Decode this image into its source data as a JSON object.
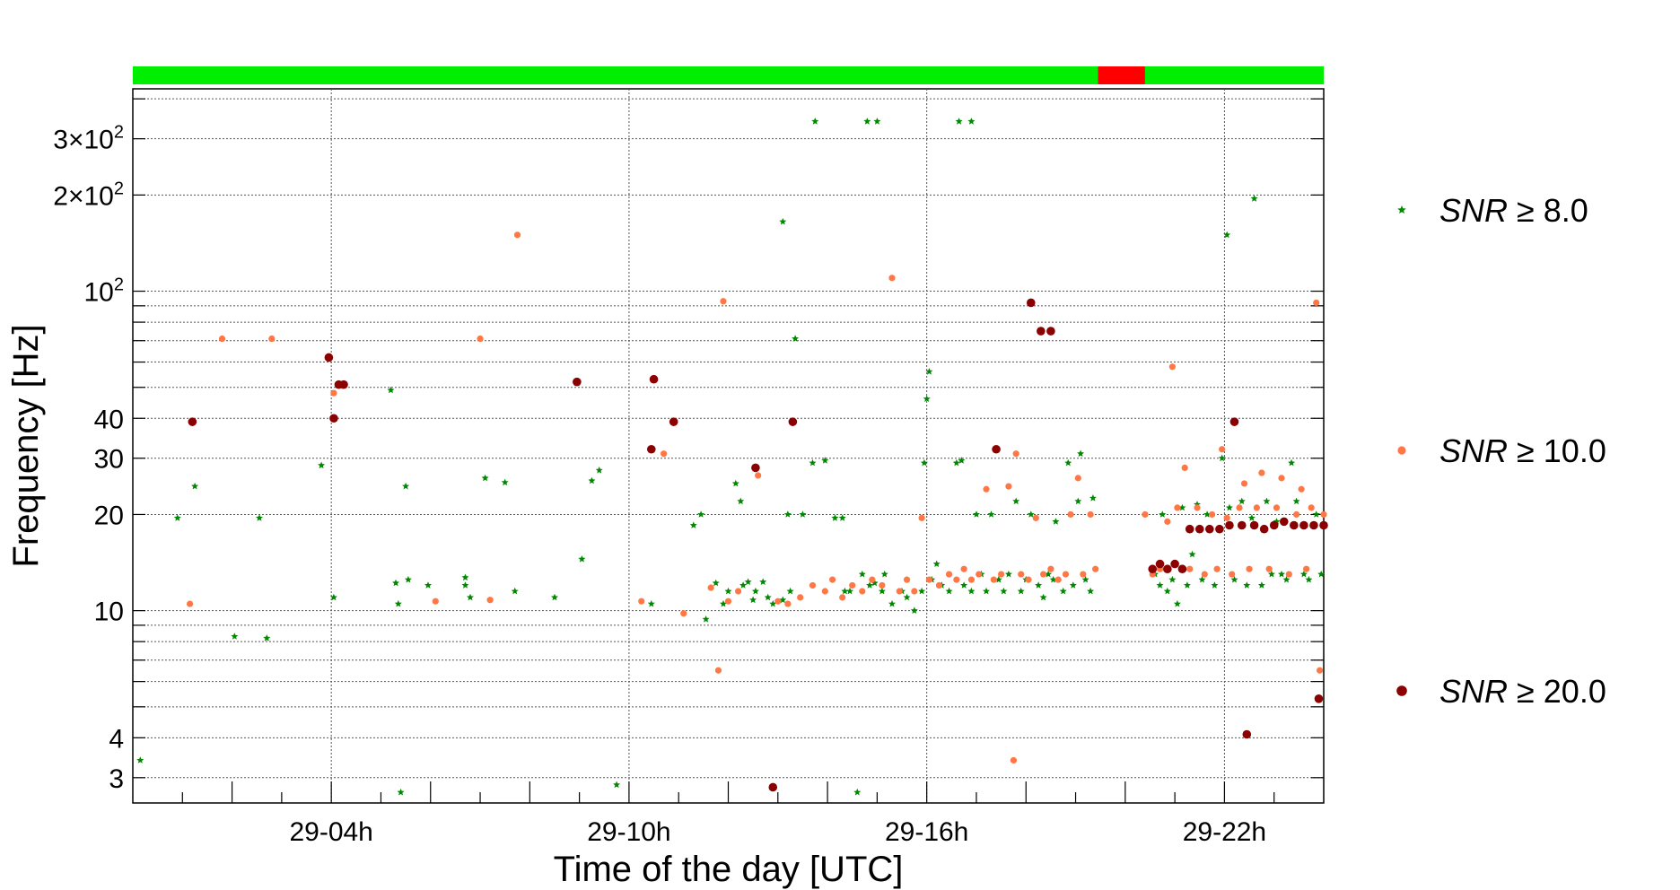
{
  "chart_data": {
    "type": "scatter",
    "title": "",
    "xlabel": "Time of the day [UTC]",
    "ylabel": "Frequency [Hz]",
    "x_unit": "hours (UTC, day 29)",
    "xlim": [
      0,
      24
    ],
    "ylim": [
      2.5,
      430
    ],
    "yscale": "log",
    "grid": true,
    "x_ticks": [
      {
        "value": 4,
        "label": "29-04h"
      },
      {
        "value": 10,
        "label": "29-10h"
      },
      {
        "value": 16,
        "label": "29-16h"
      },
      {
        "value": 22,
        "label": "29-22h"
      }
    ],
    "y_ticks": [
      {
        "value": 3,
        "label": "3",
        "sup": ""
      },
      {
        "value": 4,
        "label": "4",
        "sup": ""
      },
      {
        "value": 10,
        "label": "10",
        "sup": ""
      },
      {
        "value": 20,
        "label": "20",
        "sup": ""
      },
      {
        "value": 30,
        "label": "30",
        "sup": ""
      },
      {
        "value": 40,
        "label": "40",
        "sup": ""
      },
      {
        "value": 100,
        "label": "10",
        "sup": "2"
      },
      {
        "value": 200,
        "label": "2×10",
        "sup": "2"
      },
      {
        "value": 300,
        "label": "3×10",
        "sup": "2"
      }
    ],
    "status_bar": [
      {
        "from": 0,
        "to": 19.45,
        "color": "#00ee00"
      },
      {
        "from": 19.45,
        "to": 20.4,
        "color": "#ff0000"
      },
      {
        "from": 20.4,
        "to": 24,
        "color": "#00ee00"
      }
    ],
    "legend_position": "right",
    "series": [
      {
        "name": "SNR ≥ 8.0",
        "label_var": "SNR",
        "label_rest": " ≥ 8.0",
        "color": "#008800",
        "marker": "star",
        "points": [
          [
            0.15,
            3.4
          ],
          [
            0.9,
            19.5
          ],
          [
            1.25,
            24.5
          ],
          [
            2.05,
            8.3
          ],
          [
            2.55,
            19.5
          ],
          [
            2.7,
            8.2
          ],
          [
            4.05,
            11
          ],
          [
            3.8,
            28.5
          ],
          [
            5.2,
            49
          ],
          [
            5.3,
            12.2
          ],
          [
            5.35,
            10.5
          ],
          [
            5.4,
            2.7
          ],
          [
            5.5,
            24.5
          ],
          [
            5.55,
            12.5
          ],
          [
            5.95,
            12
          ],
          [
            6.7,
            12.7
          ],
          [
            6.7,
            12
          ],
          [
            6.8,
            11
          ],
          [
            7.1,
            26
          ],
          [
            7.5,
            25.2
          ],
          [
            7.7,
            11.5
          ],
          [
            8.5,
            11
          ],
          [
            9.05,
            14.5
          ],
          [
            9.25,
            25.5
          ],
          [
            9.4,
            27.5
          ],
          [
            9.75,
            2.85
          ],
          [
            10.45,
            10.5
          ],
          [
            11.3,
            18.5
          ],
          [
            11.45,
            20
          ],
          [
            11.55,
            9.4
          ],
          [
            11.75,
            12.2
          ],
          [
            11.9,
            10.5
          ],
          [
            12.0,
            11.5
          ],
          [
            12.15,
            25
          ],
          [
            12.25,
            22
          ],
          [
            12.3,
            12
          ],
          [
            12.4,
            12.3
          ],
          [
            12.5,
            10.8
          ],
          [
            12.55,
            11.5
          ],
          [
            12.7,
            12.3
          ],
          [
            12.8,
            11
          ],
          [
            12.9,
            10.5
          ],
          [
            13.1,
            10.8
          ],
          [
            13.25,
            11.5
          ],
          [
            13.2,
            20
          ],
          [
            13.35,
            71
          ],
          [
            13.5,
            20
          ],
          [
            13.7,
            29
          ],
          [
            13.95,
            29.5
          ],
          [
            14.15,
            19.5
          ],
          [
            14.3,
            19.5
          ],
          [
            14.35,
            11.5
          ],
          [
            14.45,
            11.5
          ],
          [
            14.6,
            2.7
          ],
          [
            14.7,
            13
          ],
          [
            14.85,
            12
          ],
          [
            14.95,
            12.2
          ],
          [
            15.1,
            11.5
          ],
          [
            15.15,
            13
          ],
          [
            15.3,
            10.5
          ],
          [
            15.5,
            11.5
          ],
          [
            15.6,
            11
          ],
          [
            15.75,
            10
          ],
          [
            15.9,
            11.5
          ],
          [
            15.95,
            29
          ],
          [
            16.0,
            46
          ],
          [
            16.05,
            56
          ],
          [
            16.1,
            12.5
          ],
          [
            16.2,
            14
          ],
          [
            16.3,
            12
          ],
          [
            16.45,
            11.5
          ],
          [
            16.6,
            29
          ],
          [
            16.7,
            29.5
          ],
          [
            16.75,
            12
          ],
          [
            16.9,
            11.5
          ],
          [
            17.0,
            20
          ],
          [
            17.1,
            13
          ],
          [
            17.2,
            11.5
          ],
          [
            17.3,
            20
          ],
          [
            17.45,
            12.5
          ],
          [
            17.55,
            11.5
          ],
          [
            17.65,
            13
          ],
          [
            17.8,
            22
          ],
          [
            17.9,
            11.5
          ],
          [
            18.0,
            12.5
          ],
          [
            18.1,
            20
          ],
          [
            18.25,
            12
          ],
          [
            18.35,
            11
          ],
          [
            18.45,
            13
          ],
          [
            18.55,
            12.5
          ],
          [
            18.6,
            19
          ],
          [
            18.75,
            11.5
          ],
          [
            18.85,
            29
          ],
          [
            18.95,
            12
          ],
          [
            19.05,
            22
          ],
          [
            19.1,
            31
          ],
          [
            19.2,
            12.5
          ],
          [
            19.3,
            11.5
          ],
          [
            19.35,
            22.5
          ],
          [
            20.6,
            13
          ],
          [
            20.7,
            12
          ],
          [
            20.75,
            20
          ],
          [
            20.85,
            11.5
          ],
          [
            20.95,
            12.5
          ],
          [
            21.05,
            10.5
          ],
          [
            21.15,
            21
          ],
          [
            21.25,
            12
          ],
          [
            21.35,
            15
          ],
          [
            21.45,
            21.5
          ],
          [
            21.55,
            12.5
          ],
          [
            21.65,
            20
          ],
          [
            21.8,
            12
          ],
          [
            21.95,
            30
          ],
          [
            22.05,
            150
          ],
          [
            22.1,
            21
          ],
          [
            22.2,
            12.5
          ],
          [
            22.35,
            22
          ],
          [
            22.45,
            12
          ],
          [
            22.55,
            19.5
          ],
          [
            22.6,
            195
          ],
          [
            22.75,
            12
          ],
          [
            22.85,
            22
          ],
          [
            22.95,
            13
          ],
          [
            23.05,
            19
          ],
          [
            23.15,
            13
          ],
          [
            23.25,
            12.5
          ],
          [
            23.35,
            29
          ],
          [
            23.45,
            22
          ],
          [
            23.6,
            13
          ],
          [
            23.7,
            12.5
          ],
          [
            23.85,
            20
          ],
          [
            23.95,
            13
          ],
          [
            13.75,
            340
          ],
          [
            14.8,
            340
          ],
          [
            15.0,
            340
          ],
          [
            16.65,
            340
          ],
          [
            16.9,
            340
          ],
          [
            13.1,
            165
          ]
        ]
      },
      {
        "name": "SNR ≥ 10.0",
        "label_var": "SNR",
        "label_rest": " ≥ 10.0",
        "color": "#ff7744",
        "marker": "dot",
        "points": [
          [
            1.15,
            10.5
          ],
          [
            1.8,
            71
          ],
          [
            2.8,
            71
          ],
          [
            4.05,
            48
          ],
          [
            6.1,
            10.7
          ],
          [
            7.0,
            71
          ],
          [
            7.2,
            10.8
          ],
          [
            7.75,
            150
          ],
          [
            10.25,
            10.7
          ],
          [
            10.7,
            31
          ],
          [
            11.1,
            9.8
          ],
          [
            11.65,
            11.8
          ],
          [
            11.8,
            6.5
          ],
          [
            11.9,
            93
          ],
          [
            12.0,
            10.7
          ],
          [
            12.2,
            11.5
          ],
          [
            12.6,
            26.5
          ],
          [
            13.0,
            10.7
          ],
          [
            13.2,
            10.5
          ],
          [
            13.45,
            11
          ],
          [
            13.7,
            12
          ],
          [
            13.95,
            11.5
          ],
          [
            14.1,
            12.5
          ],
          [
            14.3,
            11
          ],
          [
            14.5,
            12
          ],
          [
            14.7,
            11.5
          ],
          [
            14.9,
            12.5
          ],
          [
            15.1,
            12
          ],
          [
            15.3,
            110
          ],
          [
            15.45,
            11.5
          ],
          [
            15.6,
            12.5
          ],
          [
            15.75,
            11.5
          ],
          [
            15.9,
            19.5
          ],
          [
            16.05,
            12.5
          ],
          [
            16.25,
            12
          ],
          [
            16.45,
            13
          ],
          [
            16.6,
            12.5
          ],
          [
            16.75,
            13.5
          ],
          [
            16.9,
            12.5
          ],
          [
            17.05,
            13
          ],
          [
            17.2,
            24
          ],
          [
            17.35,
            12.5
          ],
          [
            17.5,
            13
          ],
          [
            17.65,
            24.5
          ],
          [
            17.75,
            3.4
          ],
          [
            17.8,
            31
          ],
          [
            17.9,
            13
          ],
          [
            18.05,
            12.5
          ],
          [
            18.2,
            19.5
          ],
          [
            18.35,
            13
          ],
          [
            18.5,
            13.5
          ],
          [
            18.65,
            12.5
          ],
          [
            18.8,
            13
          ],
          [
            18.9,
            20
          ],
          [
            19.05,
            26
          ],
          [
            19.15,
            13
          ],
          [
            19.3,
            20
          ],
          [
            19.4,
            13.5
          ],
          [
            20.4,
            20
          ],
          [
            20.55,
            13
          ],
          [
            20.7,
            13.5
          ],
          [
            20.85,
            19
          ],
          [
            20.95,
            58
          ],
          [
            21.05,
            21
          ],
          [
            21.2,
            28
          ],
          [
            21.3,
            13.5
          ],
          [
            21.45,
            21
          ],
          [
            21.6,
            13
          ],
          [
            21.75,
            20
          ],
          [
            21.85,
            13.5
          ],
          [
            21.95,
            32
          ],
          [
            22.05,
            19.5
          ],
          [
            22.15,
            13
          ],
          [
            22.3,
            21
          ],
          [
            22.4,
            25
          ],
          [
            22.5,
            13.5
          ],
          [
            22.65,
            21
          ],
          [
            22.75,
            27
          ],
          [
            22.9,
            13.5
          ],
          [
            23.05,
            21
          ],
          [
            23.15,
            26
          ],
          [
            23.3,
            13
          ],
          [
            23.45,
            20
          ],
          [
            23.55,
            24
          ],
          [
            23.65,
            13.5
          ],
          [
            23.75,
            21
          ],
          [
            23.85,
            92
          ],
          [
            23.92,
            6.5
          ],
          [
            24.0,
            20
          ]
        ]
      },
      {
        "name": "SNR ≥ 20.0",
        "label_var": "SNR",
        "label_rest": " ≥ 20.0",
        "color": "#8b0000",
        "marker": "dot",
        "points": [
          [
            1.2,
            39
          ],
          [
            3.95,
            62
          ],
          [
            4.05,
            40
          ],
          [
            4.15,
            51
          ],
          [
            4.25,
            51
          ],
          [
            8.95,
            52
          ],
          [
            10.5,
            53
          ],
          [
            10.45,
            32
          ],
          [
            10.9,
            39
          ],
          [
            12.55,
            28
          ],
          [
            12.9,
            2.8
          ],
          [
            13.3,
            39
          ],
          [
            17.4,
            32
          ],
          [
            18.1,
            92
          ],
          [
            18.3,
            75
          ],
          [
            18.5,
            75
          ],
          [
            20.55,
            13.5
          ],
          [
            20.7,
            14
          ],
          [
            20.85,
            13.5
          ],
          [
            21.0,
            14
          ],
          [
            21.15,
            13.5
          ],
          [
            21.3,
            18
          ],
          [
            21.5,
            18
          ],
          [
            21.7,
            18
          ],
          [
            21.9,
            18
          ],
          [
            22.1,
            18.5
          ],
          [
            22.2,
            39
          ],
          [
            22.35,
            18.5
          ],
          [
            22.45,
            4.1
          ],
          [
            22.6,
            18.5
          ],
          [
            22.8,
            18
          ],
          [
            23.0,
            18.5
          ],
          [
            23.2,
            19
          ],
          [
            23.4,
            18.5
          ],
          [
            23.6,
            18.5
          ],
          [
            23.8,
            18.5
          ],
          [
            23.9,
            5.3
          ],
          [
            24.0,
            18.5
          ]
        ]
      }
    ]
  }
}
